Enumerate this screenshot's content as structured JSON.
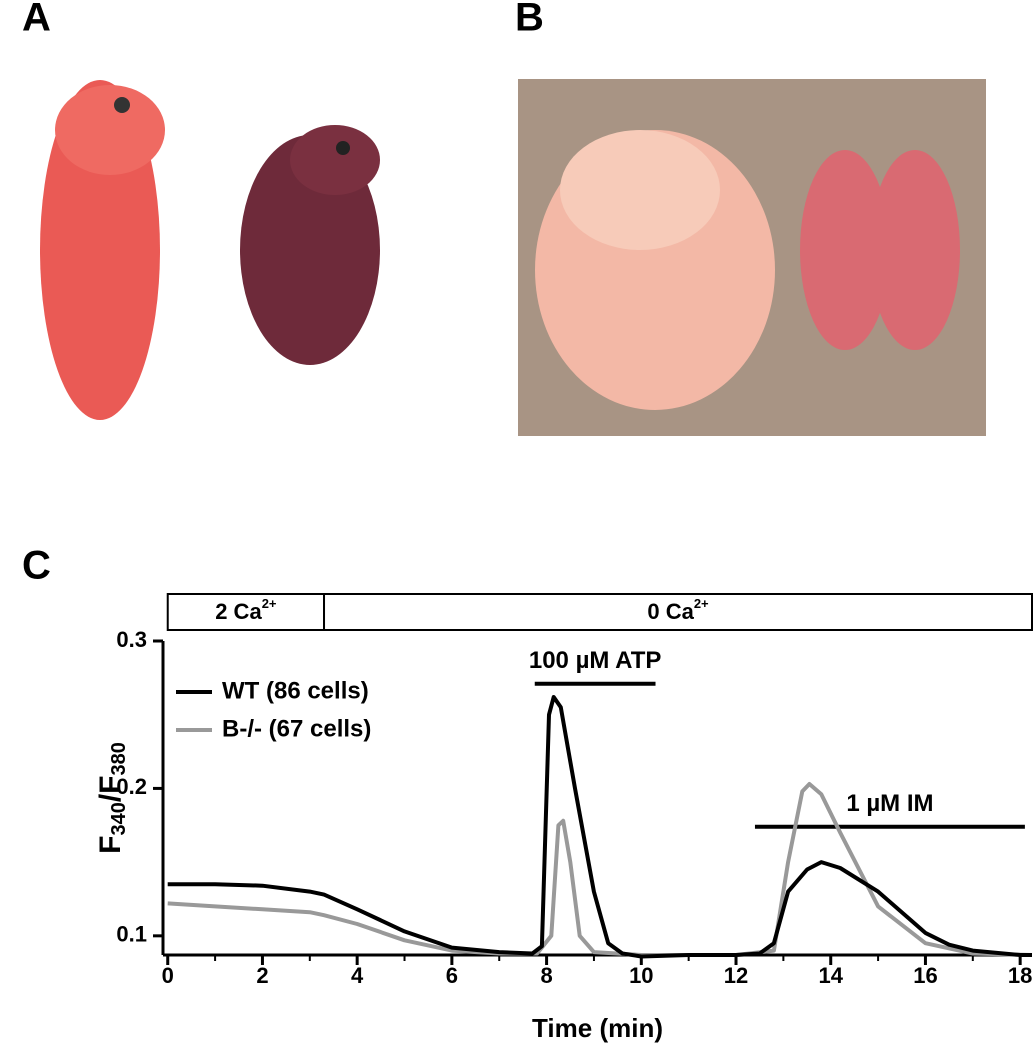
{
  "panel_labels": [
    "A",
    "B",
    "C"
  ],
  "chart_data": {
    "type": "line",
    "xlabel": "Time (min)",
    "ylabel": {
      "main": "F",
      "sub": "340",
      "main2": "/F",
      "sub2": "380"
    },
    "xlim": [
      -0.1,
      18.25
    ],
    "ylim": [
      0.087,
      0.3
    ],
    "xticks": [
      0,
      2,
      4,
      6,
      8,
      10,
      12,
      14,
      16,
      18
    ],
    "xminorticks": [
      1,
      3,
      5,
      7,
      9,
      11,
      13,
      15,
      17
    ],
    "yticks": [
      0.1,
      0.2,
      0.3
    ],
    "legend": "upper left",
    "conditions": [
      {
        "text": "2 Ca",
        "sup": "2+",
        "start": 0,
        "end": 3.3
      },
      {
        "text": "0 Ca",
        "sup": "2+",
        "start": 3.3,
        "end": 18.25
      }
    ],
    "annotations": [
      {
        "text": "100 µM ATP",
        "start": 7.75,
        "end": 10.3,
        "y": 0.271
      },
      {
        "text": "1 µM IM",
        "start": 12.4,
        "end": 18.1,
        "y": 0.174
      }
    ],
    "series": [
      {
        "name": "WT (86 cells)",
        "color": "#000000",
        "x": [
          0,
          1,
          2,
          3,
          3.3,
          4,
          5,
          6,
          7,
          7.7,
          7.9,
          8.05,
          8.15,
          8.3,
          8.6,
          9,
          9.3,
          9.6,
          10,
          11,
          12,
          12.5,
          12.8,
          13.1,
          13.5,
          13.8,
          14.2,
          15,
          16,
          16.5,
          17,
          18,
          18.25
        ],
        "values": [
          0.135,
          0.135,
          0.134,
          0.13,
          0.128,
          0.118,
          0.103,
          0.092,
          0.089,
          0.088,
          0.093,
          0.25,
          0.262,
          0.255,
          0.2,
          0.13,
          0.095,
          0.088,
          0.086,
          0.087,
          0.087,
          0.088,
          0.095,
          0.13,
          0.145,
          0.15,
          0.146,
          0.13,
          0.102,
          0.094,
          0.09,
          0.087,
          0.087
        ]
      },
      {
        "name": "B-/- (67 cells)",
        "color": "#999999",
        "x": [
          0,
          1,
          2,
          3,
          3.3,
          4,
          5,
          6,
          7,
          7.8,
          8.1,
          8.25,
          8.35,
          8.5,
          8.7,
          9,
          10,
          11,
          12,
          12.8,
          13.1,
          13.4,
          13.55,
          13.8,
          14.2,
          15,
          16,
          17,
          18.25
        ],
        "values": [
          0.122,
          0.12,
          0.118,
          0.116,
          0.114,
          0.108,
          0.097,
          0.09,
          0.088,
          0.088,
          0.1,
          0.175,
          0.178,
          0.15,
          0.1,
          0.089,
          0.087,
          0.087,
          0.087,
          0.09,
          0.15,
          0.198,
          0.203,
          0.196,
          0.17,
          0.12,
          0.095,
          0.088,
          0.087
        ]
      }
    ]
  }
}
